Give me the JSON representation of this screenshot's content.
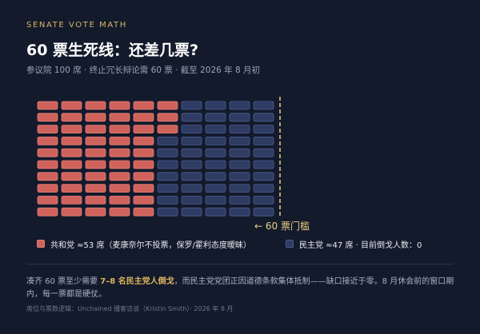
{
  "header": {
    "kicker": "SENATE VOTE MATH",
    "title": "60 票生死线：还差几票?",
    "subtitle": "参议院 100 席 · 终止冗长辩论需 60 票 · 截至 2026 年 8 月初"
  },
  "chart_data": {
    "type": "waffle",
    "total_seats": 100,
    "grid": {
      "columns": 10,
      "rows": 10
    },
    "fill_order": "top-to-bottom",
    "series": [
      {
        "name": "共和党",
        "values": [
          53
        ],
        "color": "#d0625c"
      },
      {
        "name": "民主党",
        "values": [
          47
        ],
        "color": "#2e3b63"
      }
    ],
    "threshold": {
      "value": 60,
      "label": "← 60 票门槛"
    },
    "threshold_color": "#e8cf86"
  },
  "legend": {
    "republican": "共和党 ≈53 席（麦康奈尔不投票，保罗/霍利态度暧昧）",
    "democrat": "民主党 ≈47 席 · 目前倒戈人数：0"
  },
  "note": {
    "prefix": "凑齐 60 票至少需要 ",
    "highlight": "7–8 名民主党人倒戈",
    "suffix": "，而民主党党团正因道德条款集体抵制——缺口接近于零。8 月休会前的窗口期内，每一票都是硬仗。"
  },
  "source": "席位与票数逻辑：Unchained 播客访谈（Kristin Smith）· 2026 年 8 月"
}
